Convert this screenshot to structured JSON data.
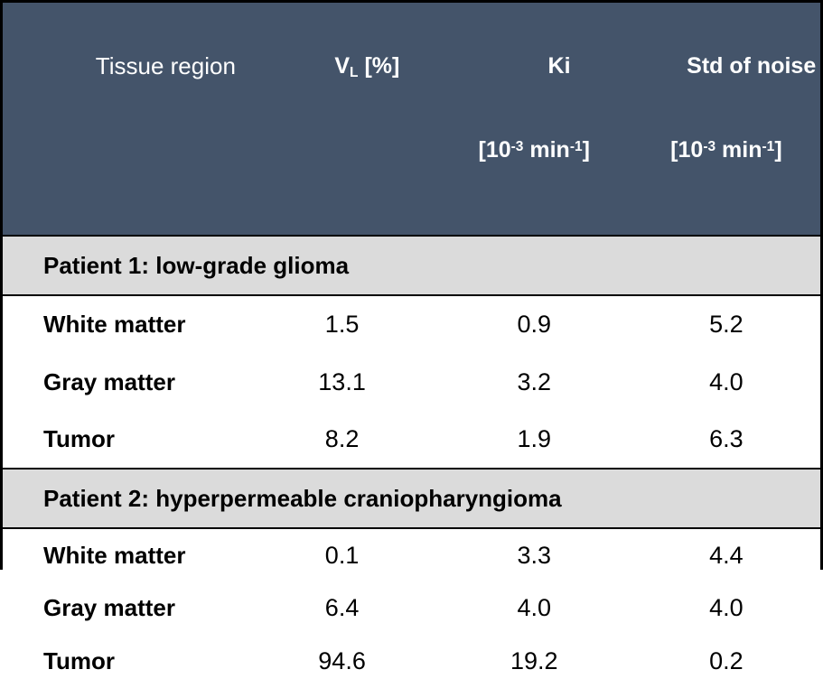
{
  "colors": {
    "header_bg": "#44546A",
    "header_text": "#FFFFFF",
    "section_bg": "#DBDBDB",
    "row_bg": "#FFFFFF",
    "border": "#000000",
    "text": "#000000"
  },
  "header": {
    "col1": {
      "title": "Tissue region"
    },
    "col2": {
      "base": "V",
      "sub": "L",
      "rest": " [%]"
    },
    "col3": {
      "title": "Ki",
      "unit": {
        "open": "[10",
        "sup1": "-3",
        "mid": " min",
        "sup2": "-1",
        "close": "]"
      }
    },
    "col4": {
      "title": "Std of noise",
      "unit": {
        "open": "[10",
        "sup1": "-3",
        "mid": " min",
        "sup2": "-1",
        "close": "]"
      }
    }
  },
  "sections": [
    {
      "label": "Patient 1: low-grade glioma",
      "rows": [
        {
          "region": "White matter",
          "vl": "1.5",
          "ki": "0.9",
          "noise": "5.2"
        },
        {
          "region": "Gray matter",
          "vl": "13.1",
          "ki": "3.2",
          "noise": "4.0"
        },
        {
          "region": "Tumor",
          "vl": "8.2",
          "ki": "1.9",
          "noise": "6.3"
        }
      ]
    },
    {
      "label": "Patient 2: hyperpermeable craniopharyngioma",
      "rows": [
        {
          "region": "White matter",
          "vl": "0.1",
          "ki": "3.3",
          "noise": "4.4"
        },
        {
          "region": "Gray matter",
          "vl": "6.4",
          "ki": "4.0",
          "noise": "4.0"
        },
        {
          "region": "Tumor",
          "vl": "94.6",
          "ki": "19.2",
          "noise": "0.2"
        }
      ]
    }
  ]
}
